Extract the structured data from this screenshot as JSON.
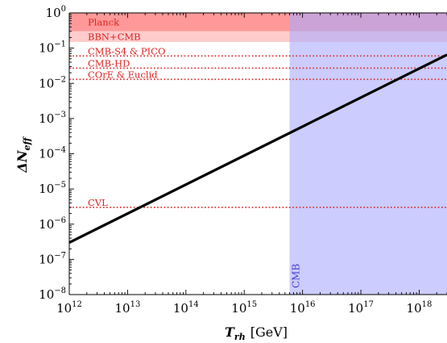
{
  "chart_data": {
    "type": "line",
    "x_scale": "log",
    "y_scale": "log",
    "xlim": [
      1000000000000.0,
      3e+18
    ],
    "ylim": [
      1e-08,
      1
    ],
    "xlabel": {
      "symbol": "T",
      "subscript": "rh",
      "unit": "[GeV]"
    },
    "ylabel": {
      "symbol": "ΔN",
      "subscript": "eff"
    },
    "x_ticks": [
      {
        "base": "10",
        "exp": "12",
        "value": 1000000000000.0
      },
      {
        "base": "10",
        "exp": "13",
        "value": 10000000000000.0
      },
      {
        "base": "10",
        "exp": "14",
        "value": 100000000000000.0
      },
      {
        "base": "10",
        "exp": "15",
        "value": 1000000000000000.0
      },
      {
        "base": "10",
        "exp": "16",
        "value": 1e+16
      },
      {
        "base": "10",
        "exp": "17",
        "value": 1e+17
      },
      {
        "base": "10",
        "exp": "18",
        "value": 1e+18
      }
    ],
    "y_ticks": [
      {
        "base": "10",
        "exp": "0",
        "value": 1
      },
      {
        "base": "10",
        "exp": "−1",
        "value": 0.1
      },
      {
        "base": "10",
        "exp": "−2",
        "value": 0.01
      },
      {
        "base": "10",
        "exp": "−3",
        "value": 0.001
      },
      {
        "base": "10",
        "exp": "−4",
        "value": 0.0001
      },
      {
        "base": "10",
        "exp": "−5",
        "value": 1e-05
      },
      {
        "base": "10",
        "exp": "−6",
        "value": 1e-06
      },
      {
        "base": "10",
        "exp": "−7",
        "value": 1e-07
      },
      {
        "base": "10",
        "exp": "−8",
        "value": 1e-08
      }
    ],
    "series": [
      {
        "points": [
          [
            1000000000000.0,
            3e-07
          ],
          [
            3e+18,
            0.065
          ]
        ],
        "color": "#000000"
      }
    ],
    "bands_y": [
      {
        "label": "Planck",
        "y_from": 0.3,
        "y_to": 1,
        "color": "#ff9999"
      },
      {
        "label": "BBN+CMB",
        "y_from": 0.15,
        "y_to": 0.3,
        "color": "#ffcccc"
      }
    ],
    "region_x": {
      "label": "CMB",
      "x_from": 6000000000000000.0,
      "x_to": 3e+18,
      "color": "#aaaaff",
      "opacity": 0.6
    },
    "reference_lines": [
      {
        "label": "CMB-S4 & PICO",
        "y": 0.06
      },
      {
        "label": "CMB-HD",
        "y": 0.027
      },
      {
        "label": "COrE & Euclid",
        "y": 0.013
      },
      {
        "label": "CVL",
        "y": 3e-06
      }
    ],
    "annotation_color": "#dd2222",
    "grid": false
  }
}
